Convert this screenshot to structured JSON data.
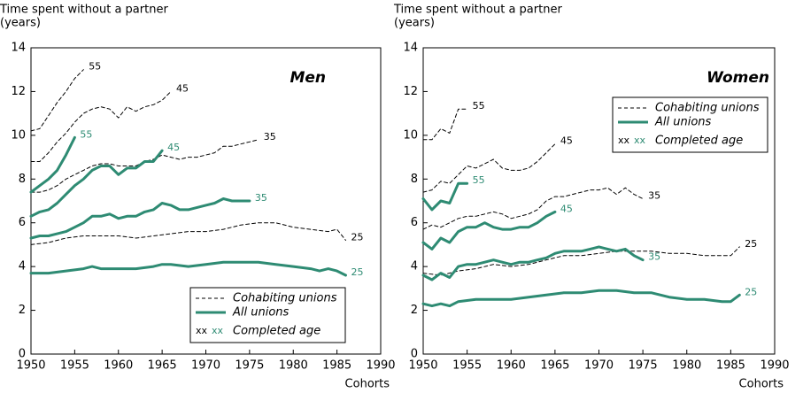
{
  "chart_data": [
    {
      "type": "line",
      "title": "Men",
      "ylabel": "Time spent without a partner",
      "ylabel_unit": "(years)",
      "xlabel": "Cohorts",
      "xlim": [
        1950,
        1990
      ],
      "xticks": [
        1950,
        1955,
        1960,
        1965,
        1970,
        1975,
        1980,
        1985,
        1990
      ],
      "ylim": [
        0,
        14
      ],
      "yticks": [
        0,
        2,
        4,
        6,
        8,
        10,
        12,
        14
      ],
      "grid": false,
      "legend": "lower right",
      "legend_labels": [
        "Cohabiting unions",
        "All unions",
        "Completed age"
      ],
      "legend_sample": [
        "xx",
        "xx"
      ],
      "series": [
        {
          "name": "55",
          "style": "dashed",
          "color": "#000000",
          "x": [
            1950,
            1951,
            1952,
            1953,
            1954,
            1955,
            1956
          ],
          "values": [
            10.2,
            10.3,
            10.9,
            11.5,
            12.0,
            12.6,
            13.0
          ]
        },
        {
          "name": "45",
          "style": "dashed",
          "color": "#000000",
          "x": [
            1950,
            1951,
            1952,
            1953,
            1954,
            1955,
            1956,
            1957,
            1958,
            1959,
            1960,
            1961,
            1962,
            1963,
            1964,
            1965,
            1966
          ],
          "values": [
            8.8,
            8.8,
            9.2,
            9.7,
            10.1,
            10.6,
            11.0,
            11.2,
            11.3,
            11.2,
            10.8,
            11.3,
            11.1,
            11.3,
            11.4,
            11.6,
            12.0
          ]
        },
        {
          "name": "35",
          "style": "dashed",
          "color": "#000000",
          "x": [
            1950,
            1951,
            1952,
            1953,
            1954,
            1955,
            1956,
            1957,
            1958,
            1959,
            1960,
            1961,
            1962,
            1963,
            1964,
            1965,
            1966,
            1967,
            1968,
            1969,
            1970,
            1971,
            1972,
            1973,
            1974,
            1975,
            1976
          ],
          "values": [
            7.4,
            7.4,
            7.5,
            7.7,
            8.0,
            8.2,
            8.4,
            8.6,
            8.7,
            8.7,
            8.6,
            8.6,
            8.6,
            8.8,
            8.9,
            9.1,
            9.0,
            8.9,
            9.0,
            9.0,
            9.1,
            9.2,
            9.5,
            9.5,
            9.6,
            9.7,
            9.8
          ]
        },
        {
          "name": "25",
          "style": "dashed",
          "color": "#000000",
          "x": [
            1950,
            1952,
            1954,
            1956,
            1958,
            1960,
            1962,
            1964,
            1966,
            1968,
            1970,
            1972,
            1974,
            1976,
            1978,
            1980,
            1982,
            1984,
            1985,
            1986
          ],
          "values": [
            5.0,
            5.1,
            5.3,
            5.4,
            5.4,
            5.4,
            5.3,
            5.4,
            5.5,
            5.6,
            5.6,
            5.7,
            5.9,
            6.0,
            6.0,
            5.8,
            5.7,
            5.6,
            5.7,
            5.2
          ]
        },
        {
          "name": "55",
          "style": "solid",
          "color": "#2e8b73",
          "x": [
            1950,
            1951,
            1952,
            1953,
            1954,
            1955
          ],
          "values": [
            7.4,
            7.7,
            8.0,
            8.4,
            9.1,
            9.9
          ]
        },
        {
          "name": "45",
          "style": "solid",
          "color": "#2e8b73",
          "x": [
            1950,
            1951,
            1952,
            1953,
            1954,
            1955,
            1956,
            1957,
            1958,
            1959,
            1960,
            1961,
            1962,
            1963,
            1964,
            1965
          ],
          "values": [
            6.3,
            6.5,
            6.6,
            6.9,
            7.3,
            7.7,
            8.0,
            8.4,
            8.6,
            8.6,
            8.2,
            8.5,
            8.5,
            8.8,
            8.8,
            9.3
          ]
        },
        {
          "name": "35",
          "style": "solid",
          "color": "#2e8b73",
          "x": [
            1950,
            1951,
            1952,
            1953,
            1954,
            1955,
            1956,
            1957,
            1958,
            1959,
            1960,
            1961,
            1962,
            1963,
            1964,
            1965,
            1966,
            1967,
            1968,
            1969,
            1970,
            1971,
            1972,
            1973,
            1974,
            1975
          ],
          "values": [
            5.3,
            5.4,
            5.4,
            5.5,
            5.6,
            5.8,
            6.0,
            6.3,
            6.3,
            6.4,
            6.2,
            6.3,
            6.3,
            6.5,
            6.6,
            6.9,
            6.8,
            6.6,
            6.6,
            6.7,
            6.8,
            6.9,
            7.1,
            7.0,
            7.0,
            7.0
          ]
        },
        {
          "name": "25",
          "style": "solid",
          "color": "#2e8b73",
          "x": [
            1950,
            1952,
            1954,
            1956,
            1957,
            1958,
            1960,
            1962,
            1964,
            1965,
            1966,
            1968,
            1970,
            1972,
            1974,
            1976,
            1978,
            1980,
            1982,
            1983,
            1984,
            1985,
            1986
          ],
          "values": [
            3.7,
            3.7,
            3.8,
            3.9,
            4.0,
            3.9,
            3.9,
            3.9,
            4.0,
            4.1,
            4.1,
            4.0,
            4.1,
            4.2,
            4.2,
            4.2,
            4.1,
            4.0,
            3.9,
            3.8,
            3.9,
            3.8,
            3.6
          ]
        }
      ]
    },
    {
      "type": "line",
      "title": "Women",
      "ylabel": "Time spent without a partner",
      "ylabel_unit": "(years)",
      "xlabel": "Cohorts",
      "xlim": [
        1950,
        1990
      ],
      "xticks": [
        1950,
        1955,
        1960,
        1965,
        1970,
        1975,
        1980,
        1985,
        1990
      ],
      "ylim": [
        0,
        14
      ],
      "yticks": [
        0,
        2,
        4,
        6,
        8,
        10,
        12,
        14
      ],
      "grid": false,
      "legend": "upper right",
      "legend_labels": [
        "Cohabiting unions",
        "All unions",
        "Completed age"
      ],
      "legend_sample": [
        "xx",
        "xx"
      ],
      "series": [
        {
          "name": "55",
          "style": "dashed",
          "color": "#000000",
          "x": [
            1950,
            1951,
            1952,
            1953,
            1954,
            1955
          ],
          "values": [
            9.8,
            9.8,
            10.3,
            10.1,
            11.2,
            11.2
          ]
        },
        {
          "name": "45",
          "style": "dashed",
          "color": "#000000",
          "x": [
            1950,
            1951,
            1952,
            1953,
            1954,
            1955,
            1956,
            1957,
            1958,
            1959,
            1960,
            1961,
            1962,
            1963,
            1964,
            1965
          ],
          "values": [
            7.4,
            7.5,
            7.9,
            7.8,
            8.2,
            8.6,
            8.5,
            8.7,
            8.9,
            8.5,
            8.4,
            8.4,
            8.5,
            8.8,
            9.2,
            9.6
          ]
        },
        {
          "name": "35",
          "style": "dashed",
          "color": "#000000",
          "x": [
            1950,
            1951,
            1952,
            1953,
            1954,
            1955,
            1956,
            1957,
            1958,
            1959,
            1960,
            1961,
            1962,
            1963,
            1964,
            1965,
            1966,
            1967,
            1968,
            1969,
            1970,
            1971,
            1972,
            1973,
            1974,
            1975
          ],
          "values": [
            5.7,
            5.9,
            5.8,
            6.0,
            6.2,
            6.3,
            6.3,
            6.4,
            6.5,
            6.4,
            6.2,
            6.3,
            6.4,
            6.6,
            7.0,
            7.2,
            7.2,
            7.3,
            7.4,
            7.5,
            7.5,
            7.6,
            7.3,
            7.6,
            7.3,
            7.1
          ]
        },
        {
          "name": "25",
          "style": "dashed",
          "color": "#000000",
          "x": [
            1950,
            1952,
            1954,
            1956,
            1958,
            1960,
            1962,
            1964,
            1966,
            1968,
            1970,
            1972,
            1974,
            1976,
            1978,
            1980,
            1982,
            1984,
            1985,
            1986
          ],
          "values": [
            3.7,
            3.6,
            3.8,
            3.9,
            4.1,
            4.0,
            4.1,
            4.3,
            4.5,
            4.5,
            4.6,
            4.7,
            4.7,
            4.7,
            4.6,
            4.6,
            4.5,
            4.5,
            4.5,
            4.9
          ]
        },
        {
          "name": "55",
          "style": "solid",
          "color": "#2e8b73",
          "x": [
            1950,
            1951,
            1952,
            1953,
            1954,
            1955
          ],
          "values": [
            7.1,
            6.6,
            7.0,
            6.9,
            7.8,
            7.8
          ]
        },
        {
          "name": "45",
          "style": "solid",
          "color": "#2e8b73",
          "x": [
            1950,
            1951,
            1952,
            1953,
            1954,
            1955,
            1956,
            1957,
            1958,
            1959,
            1960,
            1961,
            1962,
            1963,
            1964,
            1965
          ],
          "values": [
            5.1,
            4.8,
            5.3,
            5.1,
            5.6,
            5.8,
            5.8,
            6.0,
            5.8,
            5.7,
            5.7,
            5.8,
            5.8,
            6.0,
            6.3,
            6.5
          ]
        },
        {
          "name": "35",
          "style": "solid",
          "color": "#2e8b73",
          "x": [
            1950,
            1951,
            1952,
            1953,
            1954,
            1955,
            1956,
            1957,
            1958,
            1959,
            1960,
            1961,
            1962,
            1963,
            1964,
            1965,
            1966,
            1967,
            1968,
            1969,
            1970,
            1971,
            1972,
            1973,
            1974,
            1975
          ],
          "values": [
            3.6,
            3.4,
            3.7,
            3.5,
            4.0,
            4.1,
            4.1,
            4.2,
            4.3,
            4.2,
            4.1,
            4.2,
            4.2,
            4.3,
            4.4,
            4.6,
            4.7,
            4.7,
            4.7,
            4.8,
            4.9,
            4.8,
            4.7,
            4.8,
            4.5,
            4.3
          ]
        },
        {
          "name": "25",
          "style": "solid",
          "color": "#2e8b73",
          "x": [
            1950,
            1951,
            1952,
            1953,
            1954,
            1956,
            1958,
            1960,
            1962,
            1964,
            1966,
            1968,
            1970,
            1972,
            1974,
            1976,
            1978,
            1980,
            1982,
            1984,
            1985,
            1986
          ],
          "values": [
            2.3,
            2.2,
            2.3,
            2.2,
            2.4,
            2.5,
            2.5,
            2.5,
            2.6,
            2.7,
            2.8,
            2.8,
            2.9,
            2.9,
            2.8,
            2.8,
            2.6,
            2.5,
            2.5,
            2.4,
            2.4,
            2.7
          ]
        }
      ]
    }
  ]
}
